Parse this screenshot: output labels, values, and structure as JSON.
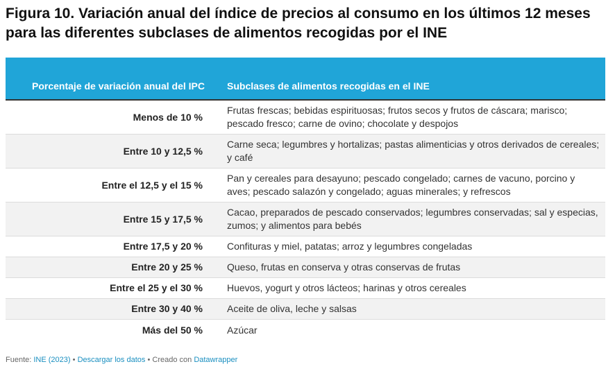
{
  "title": "Figura 10. Variación anual del índice de precios al consumo en los últimos 12 meses para las diferentes subclases de alimentos recogidas por el INE",
  "table": {
    "header": {
      "left": "Porcentaje de variación anual del IPC",
      "right": "Subclases de alimentos recogidas en el INE"
    },
    "header_color": "#20a5d8",
    "rows": [
      {
        "range": "Menos de 10 %",
        "items": "Frutas frescas; bebidas espirituosas; frutos secos y frutos de cáscara; marisco; pescado fresco; carne de ovino; chocolate y despojos"
      },
      {
        "range": "Entre 10 y 12,5 %",
        "items": "Carne seca; legumbres y hortalizas; pastas alimenticias y otros derivados de cereales; y café"
      },
      {
        "range": "Entre el 12,5 y el 15 %",
        "items": "Pan y cereales para desayuno; pescado congelado; carnes de vacuno, porcino y aves; pescado salazón y congelado; aguas minerales; y refrescos"
      },
      {
        "range": "Entre 15 y 17,5 %",
        "items": "Cacao, preparados de pescado conservados; legumbres conservadas; sal y especias, zumos; y alimentos para bebés"
      },
      {
        "range": "Entre 17,5 y 20 %",
        "items": "Confituras y miel, patatas; arroz y legumbres congeladas"
      },
      {
        "range": "Entre 20 y 25 %",
        "items": "Queso, frutas en conserva y otras conservas de frutas"
      },
      {
        "range": "Entre el 25 y el 30 %",
        "items": "Huevos, yogurt y otros lácteos; harinas y otros cereales"
      },
      {
        "range": "Entre 30 y 40 %",
        "items": "Aceite de oliva, leche y salsas"
      },
      {
        "range": "Más del 50 %",
        "items": "Azúcar"
      }
    ]
  },
  "footer": {
    "source_label": "Fuente:",
    "source_link": "INE (2023)",
    "sep1": "•",
    "download_link": "Descargar los datos",
    "sep2": "•",
    "created_label": "Creado con",
    "created_link": "Datawrapper"
  }
}
